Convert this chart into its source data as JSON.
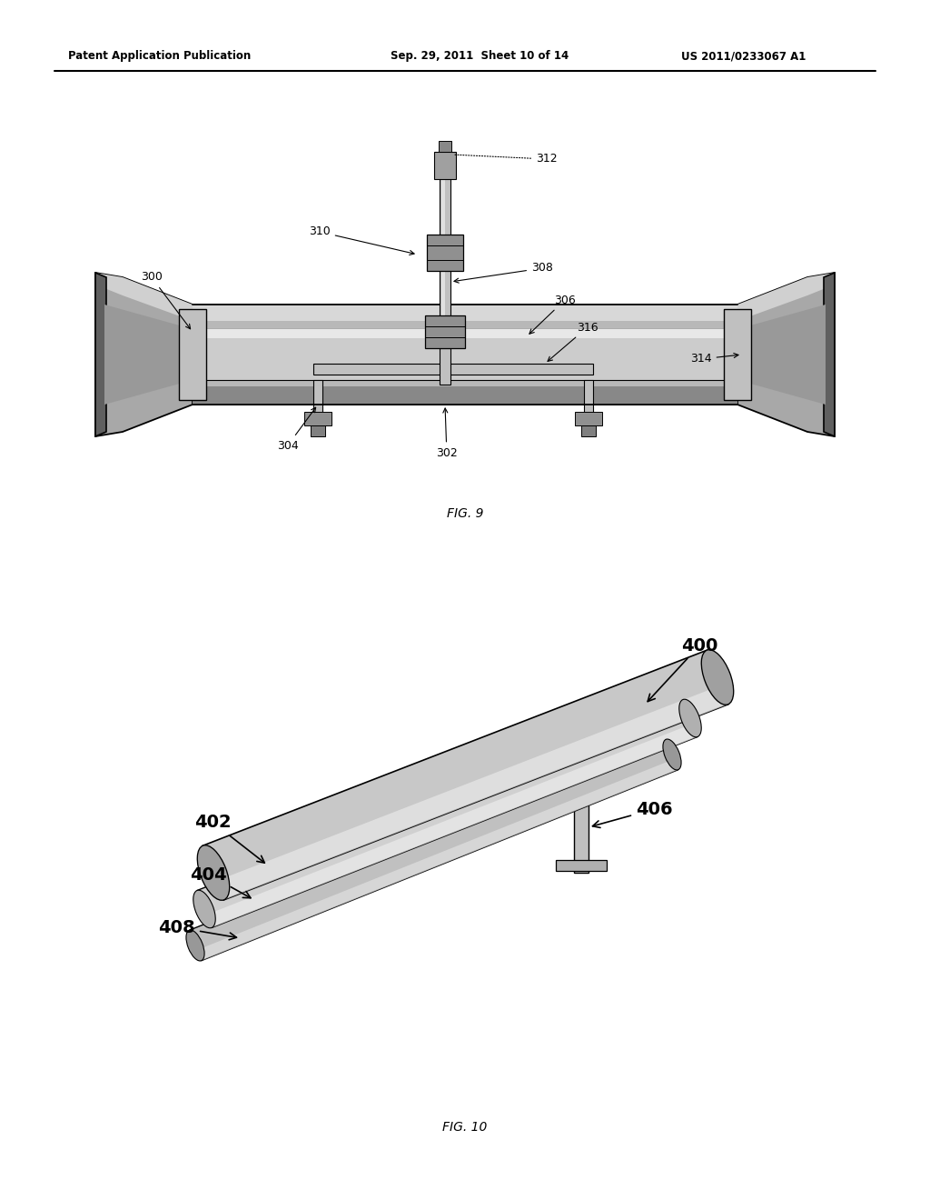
{
  "background_color": "#ffffff",
  "header_left": "Patent Application Publication",
  "header_mid": "Sep. 29, 2011  Sheet 10 of 14",
  "header_right": "US 2011/0233067 A1",
  "fig9_caption": "FIG. 9",
  "fig10_caption": "FIG. 10"
}
